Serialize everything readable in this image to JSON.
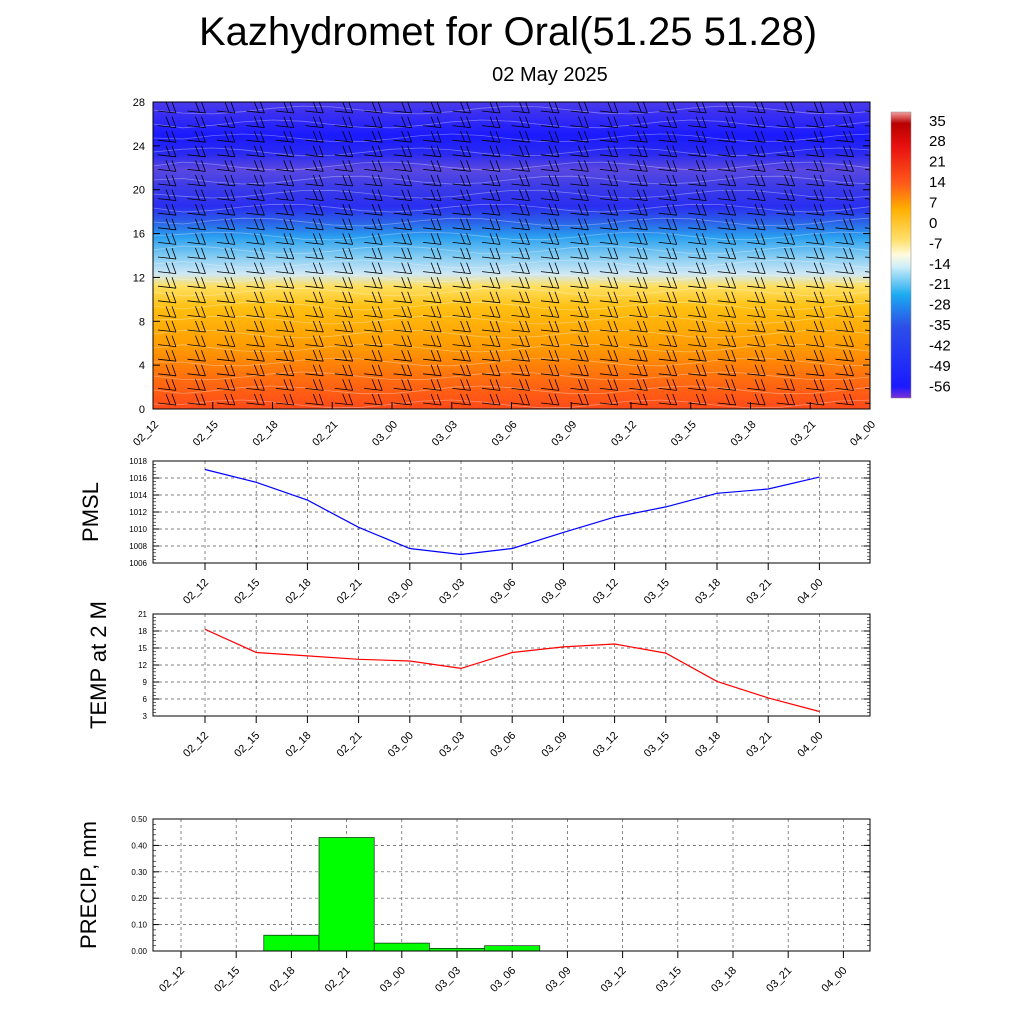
{
  "title": "Kazhydromet for Oral(51.25 51.28)",
  "subtitle": "02 May 2025",
  "time_labels": [
    "02_12",
    "02_15",
    "02_18",
    "02_21",
    "03_00",
    "03_03",
    "03_06",
    "03_09",
    "03_12",
    "03_15",
    "03_18",
    "03_21",
    "04_00"
  ],
  "chart_data": [
    {
      "type": "heatmap",
      "name": "temperature-wind-cross-section",
      "x": [
        "02_12",
        "02_15",
        "02_18",
        "02_21",
        "03_00",
        "03_03",
        "03_06",
        "03_09",
        "03_12",
        "03_15",
        "03_18",
        "03_21",
        "04_00"
      ],
      "ylim": [
        0,
        28
      ],
      "yticks": [
        0,
        4,
        8,
        12,
        16,
        20,
        24,
        28
      ],
      "colorbar": {
        "labels": [
          "35",
          "28",
          "21",
          "14",
          "7",
          "0",
          "-7",
          "-14",
          "-21",
          "-28",
          "-35",
          "-42",
          "-49",
          "-56"
        ],
        "values": [
          35,
          28,
          21,
          14,
          7,
          0,
          -7,
          -14,
          -21,
          -28,
          -35,
          -42,
          -49,
          -56
        ],
        "range": [
          -60,
          38
        ]
      },
      "wind_barbs": true
    },
    {
      "type": "line",
      "ylabel": "PMSL",
      "x": [
        "02_12",
        "02_15",
        "02_18",
        "02_21",
        "03_00",
        "03_03",
        "03_06",
        "03_09",
        "03_12",
        "03_15",
        "03_18",
        "03_21",
        "04_00"
      ],
      "values": [
        1017,
        1015.5,
        1013.4,
        1010.2,
        1007.7,
        1007,
        1007.7,
        1009.6,
        1011.4,
        1012.6,
        1014.2,
        1014.7,
        1016.1
      ],
      "ylim": [
        1006,
        1018
      ],
      "yticks": [
        "1006",
        "1008",
        "1010",
        "1012",
        "1014",
        "1016",
        "1018"
      ],
      "color": "#0000ff",
      "grid": true
    },
    {
      "type": "line",
      "ylabel": "TEMP at 2 M",
      "x": [
        "02_12",
        "02_15",
        "02_18",
        "02_21",
        "03_00",
        "03_03",
        "03_06",
        "03_09",
        "03_12",
        "03_15",
        "03_18",
        "03_21",
        "04_00"
      ],
      "values": [
        18.3,
        14.2,
        13.6,
        13,
        12.7,
        11.4,
        14.2,
        15.2,
        15.7,
        14.1,
        9.1,
        6.2,
        3.8
      ],
      "ylim": [
        3,
        21
      ],
      "yticks": [
        "3",
        "6",
        "9",
        "12",
        "15",
        "18",
        "21"
      ],
      "color": "#ff0000",
      "grid": true
    },
    {
      "type": "bar",
      "ylabel": "PRECIP, mm",
      "categories": [
        "02_12",
        "02_15",
        "02_18",
        "02_21",
        "03_00",
        "03_03",
        "03_06",
        "03_09",
        "03_12",
        "03_15",
        "03_18",
        "03_21",
        "04_00"
      ],
      "values": [
        0,
        0,
        0.06,
        0.43,
        0.03,
        0.01,
        0.02,
        0,
        0,
        0,
        0,
        0,
        0
      ],
      "ylim": [
        0,
        0.5
      ],
      "yticks": [
        "0.00",
        "0.10",
        "0.20",
        "0.30",
        "0.40",
        "0.50"
      ],
      "color": "#00ff00",
      "grid": true
    }
  ]
}
